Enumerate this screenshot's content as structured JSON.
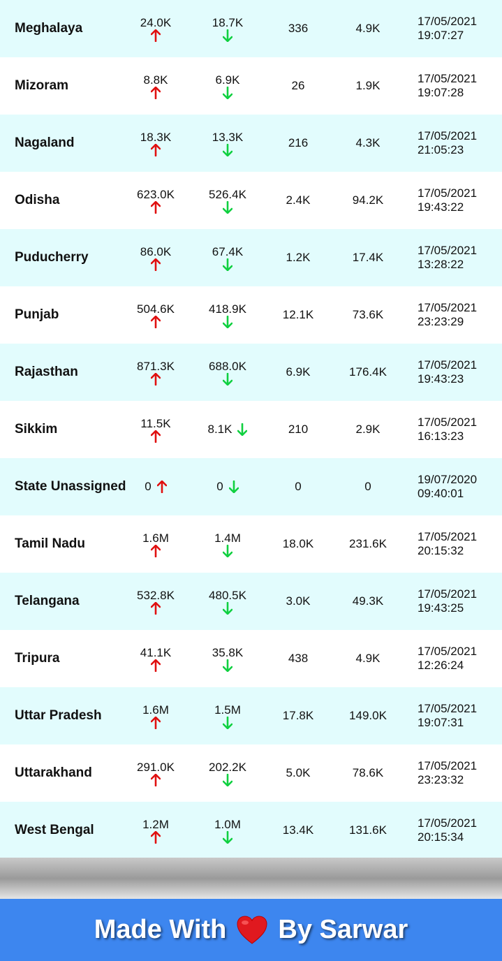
{
  "colors": {
    "row_alt": "#e2fcfd",
    "up_arrow": "#e01010",
    "down_arrow": "#10d040",
    "footer": "#3d86ef"
  },
  "rows": [
    {
      "state": "Meghalaya",
      "confirmed": "24.0K",
      "recovered": "18.7K",
      "deceased": "336",
      "active": "4.9K",
      "date": "17/05/2021",
      "time": "19:07:27"
    },
    {
      "state": "Mizoram",
      "confirmed": "8.8K",
      "recovered": "6.9K",
      "deceased": "26",
      "active": "1.9K",
      "date": "17/05/2021",
      "time": "19:07:28"
    },
    {
      "state": "Nagaland",
      "confirmed": "18.3K",
      "recovered": "13.3K",
      "deceased": "216",
      "active": "4.3K",
      "date": "17/05/2021",
      "time": "21:05:23"
    },
    {
      "state": "Odisha",
      "confirmed": "623.0K",
      "recovered": "526.4K",
      "deceased": "2.4K",
      "active": "94.2K",
      "date": "17/05/2021",
      "time": "19:43:22"
    },
    {
      "state": "Puducherry",
      "confirmed": "86.0K",
      "recovered": "67.4K",
      "deceased": "1.2K",
      "active": "17.4K",
      "date": "17/05/2021",
      "time": "13:28:22"
    },
    {
      "state": "Punjab",
      "confirmed": "504.6K",
      "recovered": "418.9K",
      "deceased": "12.1K",
      "active": "73.6K",
      "date": "17/05/2021",
      "time": "23:23:29"
    },
    {
      "state": "Rajasthan",
      "confirmed": "871.3K",
      "recovered": "688.0K",
      "deceased": "6.9K",
      "active": "176.4K",
      "date": "17/05/2021",
      "time": "19:43:23"
    },
    {
      "state": "Sikkim",
      "confirmed": "11.5K",
      "recovered": "8.1K",
      "deceased": "210",
      "active": "2.9K",
      "date": "17/05/2021",
      "time": "16:13:23",
      "recovered_inline": true
    },
    {
      "state": "State Unassigned",
      "confirmed": "0",
      "recovered": "0",
      "deceased": "0",
      "active": "0",
      "date": "19/07/2020",
      "time": "09:40:01",
      "confirmed_inline": true,
      "recovered_inline": true
    },
    {
      "state": "Tamil Nadu",
      "confirmed": "1.6M",
      "recovered": "1.4M",
      "deceased": "18.0K",
      "active": "231.6K",
      "date": "17/05/2021",
      "time": "20:15:32"
    },
    {
      "state": "Telangana",
      "confirmed": "532.8K",
      "recovered": "480.5K",
      "deceased": "3.0K",
      "active": "49.3K",
      "date": "17/05/2021",
      "time": "19:43:25"
    },
    {
      "state": "Tripura",
      "confirmed": "41.1K",
      "recovered": "35.8K",
      "deceased": "438",
      "active": "4.9K",
      "date": "17/05/2021",
      "time": "12:26:24"
    },
    {
      "state": "Uttar Pradesh",
      "confirmed": "1.6M",
      "recovered": "1.5M",
      "deceased": "17.8K",
      "active": "149.0K",
      "date": "17/05/2021",
      "time": "19:07:31"
    },
    {
      "state": "Uttarakhand",
      "confirmed": "291.0K",
      "recovered": "202.2K",
      "deceased": "5.0K",
      "active": "78.6K",
      "date": "17/05/2021",
      "time": "23:23:32"
    },
    {
      "state": "West Bengal",
      "confirmed": "1.2M",
      "recovered": "1.0M",
      "deceased": "13.4K",
      "active": "131.6K",
      "date": "17/05/2021",
      "time": "20:15:34"
    }
  ],
  "footer": {
    "prefix": "Made With",
    "suffix": "By Sarwar",
    "icon": "heart-icon"
  }
}
